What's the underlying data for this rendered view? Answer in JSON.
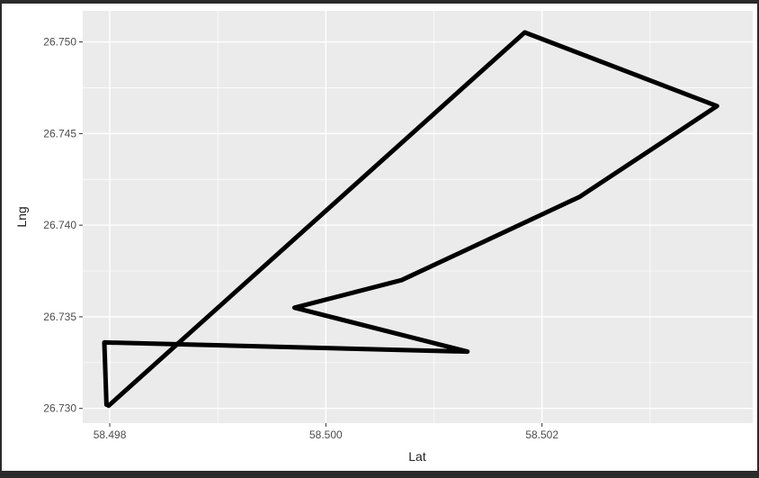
{
  "chart_data": {
    "type": "line",
    "xlabel": "Lat",
    "ylabel": "Lng",
    "xlim": [
      58.49775,
      58.50395
    ],
    "ylim": [
      26.7292,
      26.7517
    ],
    "x_ticks": [
      58.498,
      58.5,
      58.502
    ],
    "x_tick_labels": [
      "58.498",
      "58.500",
      "58.502"
    ],
    "y_ticks": [
      26.73,
      26.735,
      26.74,
      26.745,
      26.75
    ],
    "y_tick_labels": [
      "26.730",
      "26.735",
      "26.740",
      "26.745",
      "26.750"
    ],
    "grid": true,
    "panel_background": "#ebebeb",
    "grid_color": "#ffffff",
    "line_color": "#000000",
    "series": [
      {
        "x": [
          58.49797,
          58.49795,
          58.50131,
          58.49971,
          58.5007,
          58.50235,
          58.50362,
          58.50184,
          58.49799
        ],
        "y": [
          26.7302,
          26.7336,
          26.7331,
          26.7355,
          26.737,
          26.74155,
          26.7465,
          26.75052,
          26.73015
        ]
      }
    ]
  }
}
